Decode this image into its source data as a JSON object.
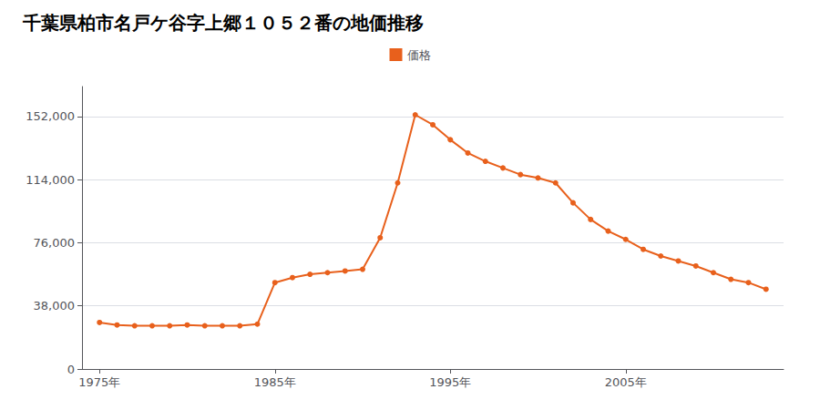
{
  "chart_data": {
    "type": "line",
    "title": "千葉県柏市名戸ケ谷字上郷１０５２番の地価推移",
    "x": [
      1975,
      1976,
      1977,
      1978,
      1979,
      1980,
      1981,
      1982,
      1983,
      1984,
      1985,
      1986,
      1987,
      1988,
      1989,
      1990,
      1991,
      1992,
      1993,
      1994,
      1995,
      1996,
      1997,
      1998,
      1999,
      2000,
      2001,
      2002,
      2003,
      2004,
      2005,
      2006,
      2007,
      2008,
      2009,
      2010,
      2011,
      2012,
      2013
    ],
    "series": [
      {
        "name": "価格",
        "color": "#e8601c",
        "marker": "circle",
        "values": [
          28000,
          26500,
          26000,
          26000,
          26000,
          26500,
          26000,
          26000,
          26000,
          27000,
          52000,
          55000,
          57000,
          58000,
          59000,
          60000,
          79000,
          112000,
          153000,
          147000,
          138000,
          130000,
          125000,
          121000,
          117000,
          115000,
          112000,
          100000,
          90000,
          83000,
          78000,
          72000,
          68000,
          65000,
          62000,
          58000,
          54000,
          52000,
          48000
        ]
      }
    ],
    "xlim": [
      1974,
      2014
    ],
    "xticks": [
      {
        "value": 1975,
        "label": "1975年"
      },
      {
        "value": 1985,
        "label": "1985年"
      },
      {
        "value": 1995,
        "label": "1995年"
      },
      {
        "value": 2005,
        "label": "2005年"
      }
    ],
    "ylim": [
      0,
      170000
    ],
    "yticks": [
      0,
      {
        "value": 38000,
        "label": "38,000"
      },
      {
        "value": 76000,
        "label": "76,000"
      },
      {
        "value": 114000,
        "label": "114,000"
      },
      {
        "value": 152000,
        "label": "152,000"
      }
    ],
    "grid": "y",
    "legend": "top"
  }
}
